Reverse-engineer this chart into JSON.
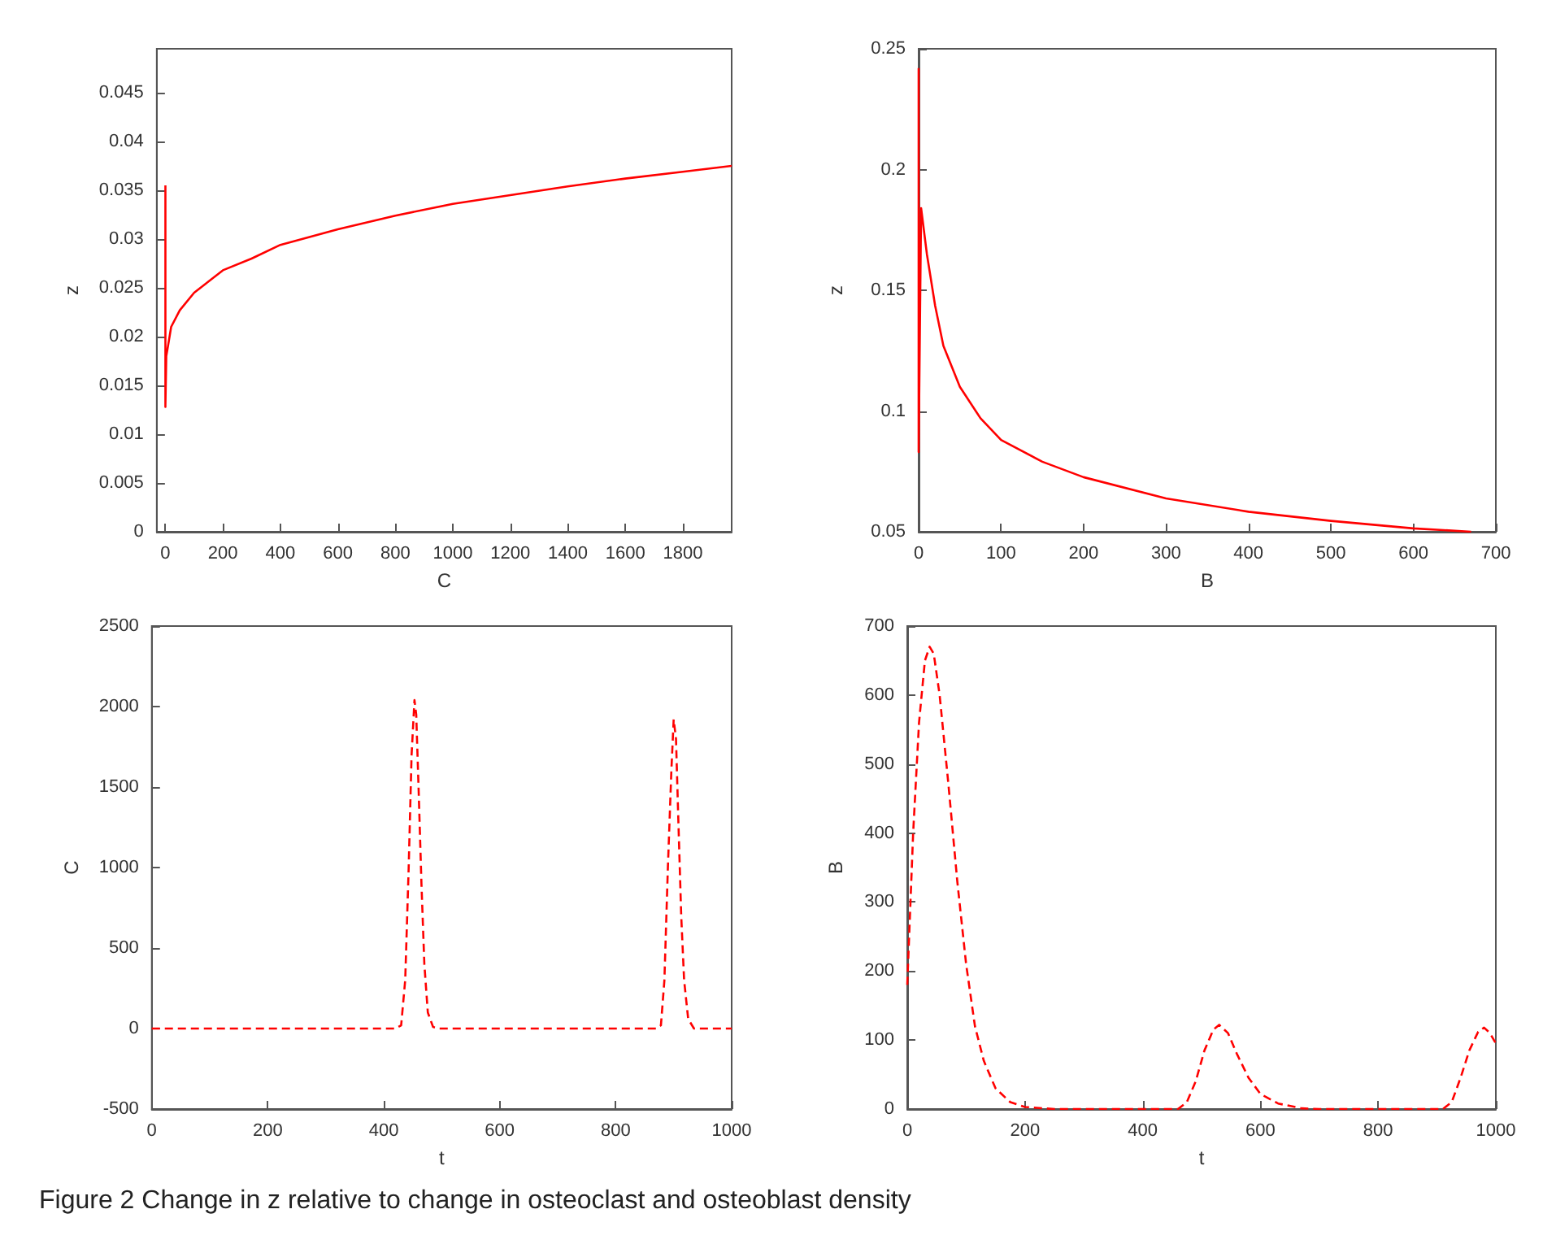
{
  "chart_data": [
    {
      "type": "line",
      "xlabel": "C",
      "ylabel": "z",
      "color": "#ff0000",
      "line_style": "solid",
      "x": [
        0,
        0,
        0,
        3,
        10,
        20,
        50,
        100,
        200,
        300,
        400,
        600,
        800,
        1000,
        1200,
        1400,
        1600,
        1800,
        1970
      ],
      "values": [
        0.0355,
        0.0128,
        0.013,
        0.018,
        0.0192,
        0.021,
        0.0227,
        0.0245,
        0.0268,
        0.028,
        0.0294,
        0.031,
        0.0324,
        0.0336,
        0.0345,
        0.0354,
        0.0362,
        0.0369,
        0.0375
      ],
      "xlim": [
        -30,
        1970
      ],
      "xticks": [
        0,
        200,
        400,
        600,
        800,
        1000,
        1200,
        1400,
        1600,
        1800
      ],
      "ylim": [
        0,
        0.0495
      ],
      "yticks": [
        0,
        0.005,
        0.01,
        0.015,
        0.02,
        0.025,
        0.03,
        0.035,
        0.04,
        0.045
      ],
      "annotations": [
        "Figure 2  Change in z relative to change in osteoclast and osteoblast density"
      ]
    },
    {
      "type": "line",
      "xlabel": "B",
      "ylabel": "z",
      "color": "#ff0000",
      "line_style": "solid",
      "x": [
        0,
        0,
        3,
        10,
        20,
        30,
        50,
        75,
        100,
        150,
        200,
        300,
        400,
        500,
        600,
        670
      ],
      "values": [
        0.242,
        0.083,
        0.184,
        0.165,
        0.1436,
        0.127,
        0.11,
        0.097,
        0.088,
        0.079,
        0.0726,
        0.0638,
        0.0583,
        0.0545,
        0.0514,
        0.05
      ],
      "xlim": [
        0,
        700
      ],
      "xticks": [
        0,
        100,
        200,
        300,
        400,
        500,
        600,
        700
      ],
      "ylim": [
        0.05,
        0.25
      ],
      "yticks": [
        0.05,
        0.1,
        0.15,
        0.2,
        0.25
      ]
    },
    {
      "type": "line",
      "xlabel": "t",
      "ylabel": "C",
      "color": "#ff0000",
      "line_style": "dashed",
      "x": [
        0,
        420,
        430,
        437,
        443,
        448,
        453,
        456,
        460,
        465,
        470,
        476,
        485,
        495,
        870,
        878,
        884,
        890,
        896,
        900,
        904,
        908,
        913,
        918,
        925,
        935,
        945,
        1000
      ],
      "values": [
        0,
        0,
        20,
        300,
        1000,
        1700,
        2040,
        1950,
        1500,
        900,
        400,
        100,
        10,
        0,
        0,
        20,
        300,
        1000,
        1600,
        1920,
        1800,
        1300,
        700,
        300,
        60,
        0,
        0,
        0
      ],
      "xlim": [
        0,
        1000
      ],
      "xticks": [
        0,
        200,
        400,
        600,
        800,
        1000
      ],
      "ylim": [
        -500,
        2500
      ],
      "yticks": [
        -500,
        0,
        500,
        1000,
        1500,
        2000,
        2500
      ]
    },
    {
      "type": "line",
      "xlabel": "t",
      "ylabel": "B",
      "color": "#ff0000",
      "line_style": "dashed",
      "x": [
        0,
        10,
        20,
        30,
        38,
        45,
        55,
        70,
        85,
        100,
        115,
        130,
        150,
        175,
        200,
        250,
        460,
        475,
        490,
        505,
        520,
        530,
        545,
        560,
        580,
        600,
        630,
        670,
        700,
        910,
        925,
        940,
        955,
        970,
        980,
        990,
        1000
      ],
      "values": [
        180,
        400,
        560,
        650,
        670,
        660,
        600,
        470,
        330,
        210,
        120,
        70,
        30,
        10,
        3,
        0,
        0,
        10,
        40,
        85,
        115,
        122,
        110,
        80,
        45,
        22,
        8,
        1,
        0,
        0,
        10,
        45,
        85,
        112,
        118,
        110,
        95
      ],
      "xlim": [
        0,
        1000
      ],
      "xticks": [
        0,
        200,
        400,
        600,
        800,
        1000
      ],
      "ylim": [
        0,
        700
      ],
      "yticks": [
        0,
        100,
        200,
        300,
        400,
        500,
        600,
        700
      ]
    }
  ]
}
